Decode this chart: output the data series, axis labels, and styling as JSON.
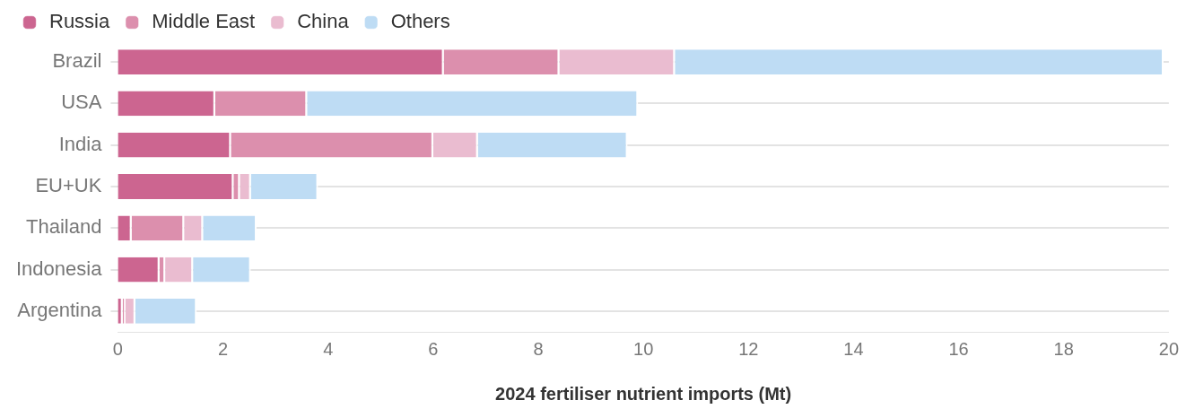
{
  "chart_data": {
    "type": "bar",
    "orientation": "horizontal",
    "stacked": true,
    "xlabel": "2024 fertiliser nutrient imports (Mt)",
    "categories": [
      "Brazil",
      "USA",
      "India",
      "EU+UK",
      "Thailand",
      "Indonesia",
      "Argentina"
    ],
    "series": [
      {
        "name": "Russia",
        "color": "#cc6590",
        "values": [
          6.2,
          1.85,
          2.15,
          2.2,
          0.26,
          0.79,
          0.09
        ]
      },
      {
        "name": "Middle East",
        "color": "#dc8fad",
        "values": [
          2.2,
          1.75,
          3.85,
          0.12,
          1.0,
          0.11,
          0.05
        ]
      },
      {
        "name": "China",
        "color": "#eabcd0",
        "values": [
          2.2,
          0,
          0.85,
          0.21,
          0.36,
          0.53,
          0.19
        ]
      },
      {
        "name": "Others",
        "color": "#bedcf4",
        "values": [
          9.3,
          6.3,
          2.85,
          1.28,
          1.02,
          1.1,
          1.17
        ]
      }
    ],
    "xlim": [
      0,
      20
    ],
    "xticks": [
      0,
      2,
      4,
      6,
      8,
      10,
      12,
      14,
      16,
      18,
      20
    ],
    "grid": "y",
    "legend": "top left"
  }
}
